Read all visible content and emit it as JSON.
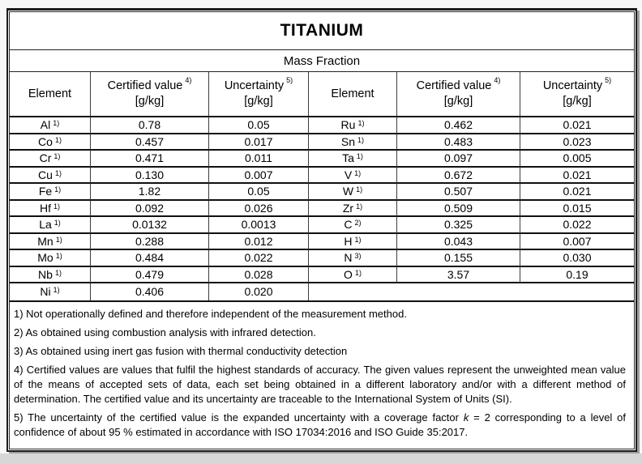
{
  "page": {
    "title": "TITANIUM",
    "subtitle": "Mass Fraction"
  },
  "columns": {
    "element": "Element",
    "certified": "Certified value",
    "certified_sup": "4)",
    "uncertainty": "Uncertainty",
    "uncertainty_sup": "5)",
    "unit": "[g/kg]"
  },
  "left_rows": [
    {
      "el": "Al",
      "sup": "1)",
      "value": "0.78",
      "unc": "0.05"
    },
    {
      "el": "Co",
      "sup": "1)",
      "value": "0.457",
      "unc": "0.017"
    },
    {
      "el": "Cr",
      "sup": "1)",
      "value": "0.471",
      "unc": "0.011"
    },
    {
      "el": "Cu",
      "sup": "1)",
      "value": "0.130",
      "unc": "0.007"
    },
    {
      "el": "Fe",
      "sup": "1)",
      "value": "1.82",
      "unc": "0.05"
    },
    {
      "el": "Hf",
      "sup": "1)",
      "value": "0.092",
      "unc": "0.026"
    },
    {
      "el": "La",
      "sup": "1)",
      "value": "0.0132",
      "unc": "0.0013"
    },
    {
      "el": "Mn",
      "sup": "1)",
      "value": "0.288",
      "unc": "0.012"
    },
    {
      "el": "Mo",
      "sup": "1)",
      "value": "0.484",
      "unc": "0.022"
    },
    {
      "el": "Nb",
      "sup": "1)",
      "value": "0.479",
      "unc": "0.028"
    },
    {
      "el": "Ni",
      "sup": "1)",
      "value": "0.406",
      "unc": "0.020"
    }
  ],
  "right_rows": [
    {
      "el": "Ru",
      "sup": "1)",
      "value": "0.462",
      "unc": "0.021"
    },
    {
      "el": "Sn",
      "sup": "1)",
      "value": "0.483",
      "unc": "0.023"
    },
    {
      "el": "Ta",
      "sup": "1)",
      "value": "0.097",
      "unc": "0.005"
    },
    {
      "el": "V",
      "sup": "1)",
      "value": "0.672",
      "unc": "0.021"
    },
    {
      "el": "W",
      "sup": "1)",
      "value": "0.507",
      "unc": "0.021"
    },
    {
      "el": "Zr",
      "sup": "1)",
      "value": "0.509",
      "unc": "0.015"
    },
    {
      "el": "C",
      "sup": "2)",
      "value": "0.325",
      "unc": "0.022"
    },
    {
      "el": "H",
      "sup": "1)",
      "value": "0.043",
      "unc": "0.007"
    },
    {
      "el": "N",
      "sup": "3)",
      "value": "0.155",
      "unc": "0.030"
    },
    {
      "el": "O",
      "sup": "1)",
      "value": "3.57",
      "unc": "0.19"
    }
  ],
  "footnotes": {
    "n1": "1) Not operationally defined and therefore independent of the measurement method.",
    "n2": "2) As obtained using combustion analysis with infrared detection.",
    "n3": "3) As obtained using inert gas fusion with thermal conductivity detection",
    "n4": "4) Certified values are values that fulfil the highest standards of accuracy. The given values represent the unweighted mean value of the means of accepted sets of data, each set being obtained in a different laboratory and/or with a different method of determination. The certified value and its uncertainty are traceable to the International System of Units (SI).",
    "n5_pre": "5) The uncertainty of the certified value is the expanded uncertainty with a coverage factor ",
    "n5_k": "k",
    "n5_post": " = 2 corresponding to a level of confidence of about 95 % estimated in accordance with ISO 17034:2016 and ISO Guide 35:2017."
  },
  "colors": {
    "background": "#ffffff",
    "page_background": "#f7f7f7",
    "border_heavy": "#101010",
    "border_thin": "#3d3d3d",
    "text": "#000000",
    "shadow": "#9c9c9c",
    "bottom_strip": "#d7d7d7"
  }
}
